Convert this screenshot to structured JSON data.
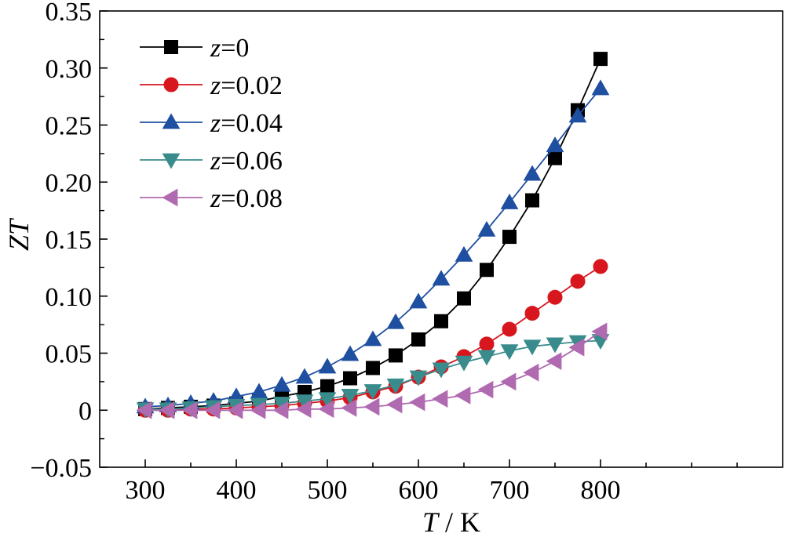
{
  "chart_data": {
    "type": "line",
    "xlabel_var": "T",
    "xlabel_unit": " / K",
    "ylabel": "ZT",
    "xlim": [
      250,
      1000
    ],
    "ylim": [
      -0.05,
      0.35
    ],
    "xticks": [
      300,
      400,
      500,
      600,
      700,
      800
    ],
    "yticks": [
      -0.05,
      0,
      0.05,
      0.1,
      0.15,
      0.2,
      0.25,
      0.3,
      0.35
    ],
    "ytick_labels": [
      "−0.05",
      "0",
      "0.05",
      "0.10",
      "0.15",
      "0.20",
      "0.25",
      "0.30",
      "0.35"
    ],
    "xtick_labels": [
      "300",
      "400",
      "500",
      "600",
      "700",
      "800"
    ],
    "legend_position": "top-left",
    "grid": false,
    "x": [
      300,
      325,
      350,
      375,
      400,
      425,
      450,
      475,
      500,
      525,
      550,
      575,
      600,
      625,
      650,
      675,
      700,
      725,
      750,
      775,
      800
    ],
    "series": [
      {
        "name_var": "z",
        "name_value": "=0",
        "marker": "square",
        "color": "#000000",
        "values": [
          0.001,
          0.002,
          0.003,
          0.004,
          0.006,
          0.008,
          0.012,
          0.016,
          0.021,
          0.028,
          0.037,
          0.048,
          0.062,
          0.078,
          0.098,
          0.123,
          0.152,
          0.184,
          0.221,
          0.263,
          0.308
        ]
      },
      {
        "name_var": "z",
        "name_value": "=0.02",
        "marker": "circle",
        "color": "#d7161e",
        "values": [
          0.0,
          0.0,
          0.001,
          0.001,
          0.002,
          0.003,
          0.004,
          0.006,
          0.008,
          0.011,
          0.016,
          0.021,
          0.029,
          0.038,
          0.047,
          0.058,
          0.071,
          0.085,
          0.099,
          0.113,
          0.126
        ]
      },
      {
        "name_var": "z",
        "name_value": "=0.04",
        "marker": "triangle-up",
        "color": "#1f4fa0",
        "values": [
          0.003,
          0.004,
          0.006,
          0.008,
          0.012,
          0.016,
          0.022,
          0.029,
          0.038,
          0.049,
          0.062,
          0.077,
          0.095,
          0.115,
          0.136,
          0.158,
          0.182,
          0.207,
          0.232,
          0.258,
          0.282
        ]
      },
      {
        "name_var": "z",
        "name_value": "=0.06",
        "marker": "triangle-down",
        "color": "#3a8c8c",
        "values": [
          0.001,
          0.001,
          0.002,
          0.003,
          0.004,
          0.005,
          0.006,
          0.008,
          0.01,
          0.013,
          0.017,
          0.022,
          0.029,
          0.036,
          0.042,
          0.047,
          0.052,
          0.056,
          0.058,
          0.06,
          0.061
        ]
      },
      {
        "name_var": "z",
        "name_value": "=0.08",
        "marker": "triangle-left",
        "color": "#b06ab0",
        "values": [
          0.0,
          0.0,
          0.0,
          0.0,
          0.0,
          0.0,
          0.0,
          0.001,
          0.001,
          0.002,
          0.003,
          0.005,
          0.007,
          0.01,
          0.013,
          0.018,
          0.025,
          0.033,
          0.043,
          0.055,
          0.069
        ]
      }
    ]
  }
}
